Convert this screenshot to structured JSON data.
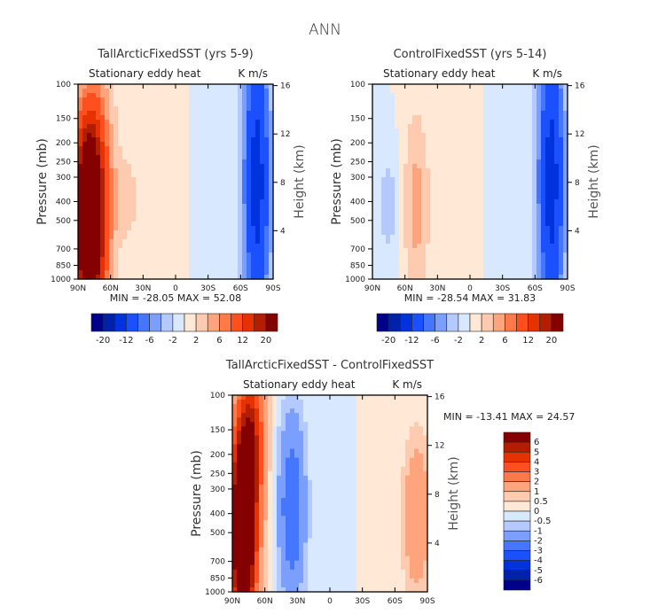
{
  "figure": {
    "title": "ANN"
  },
  "colors": {
    "palette_16": [
      "#00008b",
      "#0022aa",
      "#0033dd",
      "#1a50ff",
      "#4476ff",
      "#7a9fff",
      "#b4c9ff",
      "#d8e8ff",
      "#ffe8d6",
      "#ffcbb0",
      "#ffa47c",
      "#ff7a48",
      "#ff4f1f",
      "#e63200",
      "#b21e00",
      "#850000"
    ],
    "axis": "#000000"
  },
  "chart_data": [
    {
      "id": "panel-tall",
      "type": "heatmap",
      "title": "TallArcticFixedSST (yrs 5-9)",
      "subtitle_left": "Stationary eddy heat",
      "subtitle_right": "K m/s",
      "xlabel": "",
      "ylabel": "Pressure (mb)",
      "y2label": "Height (km)",
      "x_ticks": [
        "90N",
        "60N",
        "30N",
        "0",
        "30S",
        "60S",
        "90S"
      ],
      "x_range": [
        90,
        -90
      ],
      "y_ticks": [
        100,
        150,
        200,
        250,
        300,
        400,
        500,
        700,
        850,
        1000
      ],
      "y_range": [
        100,
        1000
      ],
      "y_scale": "log",
      "y2_ticks": [
        16,
        12,
        8,
        4
      ],
      "min_label": "MIN = -28.05",
      "max_label": "MAX = 52.08",
      "stats": {
        "min": -28.05,
        "max": 52.08
      },
      "colorbar": {
        "orientation": "horizontal",
        "levels": [
          -20,
          -16,
          -12,
          -8,
          -6,
          -4,
          -2,
          0,
          2,
          4,
          6,
          8,
          12,
          16,
          20
        ],
        "tick_labels": [
          "-20",
          "-12",
          "-6",
          "-2",
          "2",
          "6",
          "12",
          "20"
        ]
      },
      "features": [
        {
          "lat": 80,
          "p_top": 250,
          "p_bot": 900,
          "value": 40,
          "desc": "strong positive core near 80N mid-troposphere"
        },
        {
          "lat": 65,
          "p_top": 100,
          "p_bot": 1000,
          "value": 4,
          "desc": "positive band 60-70N"
        },
        {
          "lat": 45,
          "p_top": 300,
          "p_bot": 500,
          "value": 3,
          "desc": "positive lobe near 45N"
        },
        {
          "lat": -75,
          "p_top": 100,
          "p_bot": 1000,
          "value": -14,
          "desc": "negative band near 75S"
        }
      ]
    },
    {
      "id": "panel-control",
      "type": "heatmap",
      "title": "ControlFixedSST (yrs 5-14)",
      "subtitle_left": "Stationary eddy heat",
      "subtitle_right": "K m/s",
      "xlabel": "",
      "ylabel": "Pressure (mb)",
      "y2label": "Height (km)",
      "x_ticks": [
        "90N",
        "60N",
        "30N",
        "0",
        "30S",
        "60S",
        "90S"
      ],
      "x_range": [
        90,
        -90
      ],
      "y_ticks": [
        100,
        150,
        200,
        250,
        300,
        400,
        500,
        700,
        850,
        1000
      ],
      "y_range": [
        100,
        1000
      ],
      "y_scale": "log",
      "y2_ticks": [
        16,
        12,
        8,
        4
      ],
      "min_label": "MIN = -28.54",
      "max_label": "MAX = 31.83",
      "stats": {
        "min": -28.54,
        "max": 31.83
      },
      "colorbar": {
        "orientation": "horizontal",
        "levels": [
          -20,
          -16,
          -12,
          -8,
          -6,
          -4,
          -2,
          0,
          2,
          4,
          6,
          8,
          12,
          16,
          20
        ],
        "tick_labels": [
          "-20",
          "-12",
          "-6",
          "-2",
          "2",
          "6",
          "12",
          "20"
        ]
      },
      "features": [
        {
          "lat": 50,
          "p_top": 220,
          "p_bot": 800,
          "value": 5,
          "desc": "positive core near 50N"
        },
        {
          "lat": 75,
          "p_top": 300,
          "p_bot": 600,
          "value": -3,
          "desc": "weak negative near 75N"
        },
        {
          "lat": -75,
          "p_top": 100,
          "p_bot": 1000,
          "value": -14,
          "desc": "negative band near 75S"
        }
      ]
    },
    {
      "id": "panel-diff",
      "type": "heatmap",
      "title": "TallArcticFixedSST - ControlFixedSST",
      "subtitle_left": "Stationary eddy heat",
      "subtitle_right": "K m/s",
      "xlabel": "",
      "ylabel": "Pressure (mb)",
      "y2label": "Height (km)",
      "x_ticks": [
        "90N",
        "60N",
        "30N",
        "0",
        "30S",
        "60S",
        "90S"
      ],
      "x_range": [
        90,
        -90
      ],
      "y_ticks": [
        100,
        150,
        200,
        250,
        300,
        400,
        500,
        700,
        850,
        1000
      ],
      "y_range": [
        100,
        1000
      ],
      "y_scale": "log",
      "y2_ticks": [
        16,
        12,
        8,
        4
      ],
      "min_label": "MIN = -13.41",
      "max_label": "MAX = 24.57",
      "stats": {
        "min": -13.41,
        "max": 24.57
      },
      "colorbar": {
        "orientation": "vertical",
        "levels": [
          -6,
          -5,
          -4,
          -3,
          -2,
          -1,
          -0.5,
          0,
          0.5,
          1,
          2,
          3,
          4,
          5,
          6
        ],
        "tick_labels": [
          "6",
          "5",
          "4",
          "3",
          "2",
          "1",
          "0.5",
          "0",
          "-0.5",
          "-1",
          "-2",
          "-3",
          "-4",
          "-5",
          "-6"
        ]
      },
      "features": [
        {
          "lat": 80,
          "p_top": 250,
          "p_bot": 1000,
          "value": 10,
          "desc": "very strong positive column 70-90N"
        },
        {
          "lat": 72,
          "p_top": 100,
          "p_bot": 250,
          "value": 4,
          "desc": "positive upper-level extension"
        },
        {
          "lat": 35,
          "p_top": 200,
          "p_bot": 700,
          "value": -3,
          "desc": "negative lobe near 30-50N"
        },
        {
          "lat": -80,
          "p_top": 250,
          "p_bot": 700,
          "value": 2,
          "desc": "positive lobe near 80S"
        }
      ]
    }
  ]
}
